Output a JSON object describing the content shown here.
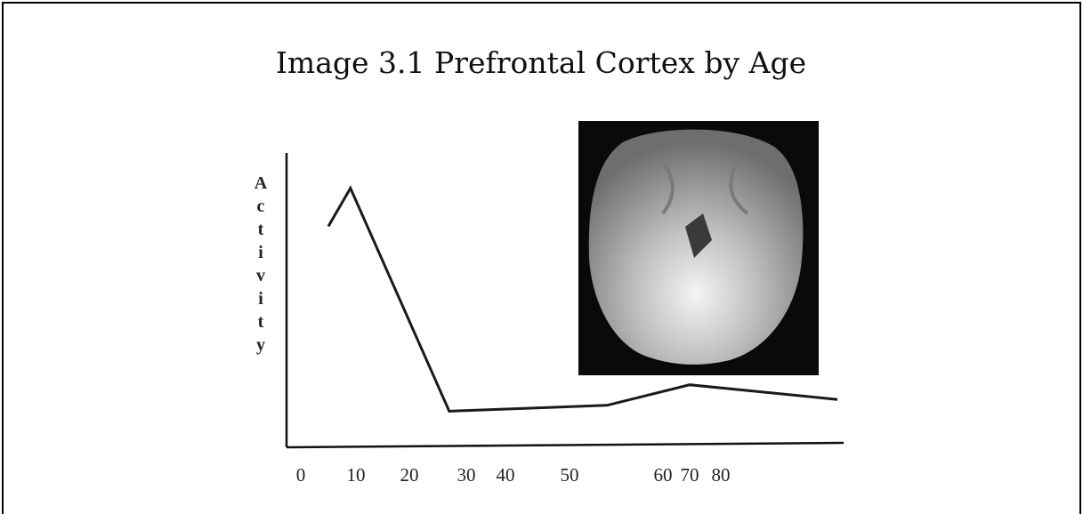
{
  "chart_data": {
    "type": "line",
    "title": "Image 3.1 Prefrontal Cortex by Age",
    "y_label": "Activity",
    "x": [
      5,
      9,
      27,
      54,
      70,
      99
    ],
    "values": [
      75,
      88,
      12,
      14,
      21,
      16
    ],
    "color": "#1a1a1a",
    "xlim": [
      0,
      100
    ],
    "xticks": [
      0,
      10,
      20,
      30,
      40,
      50,
      60,
      70,
      80
    ],
    "ylim": [
      0,
      100
    ]
  }
}
